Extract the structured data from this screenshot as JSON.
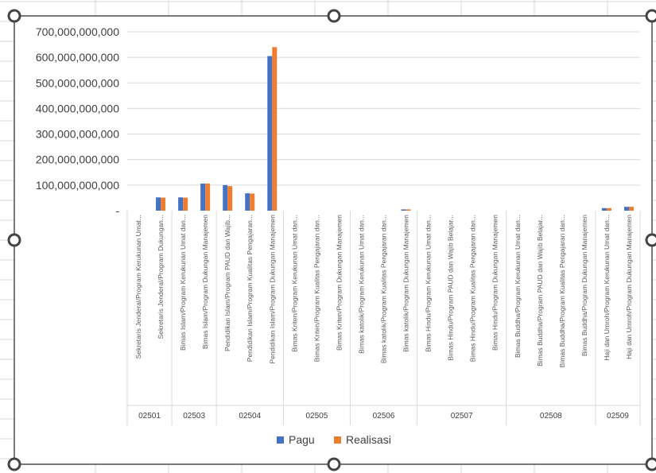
{
  "colors": {
    "pagu": "#4472C4",
    "realisasi": "#ED7D31",
    "grid": "#D9D9D9",
    "text": "#404040"
  },
  "chart_data": {
    "type": "bar",
    "title": "",
    "xlabel": "",
    "ylabel": "",
    "ylim": [
      0,
      700000000000
    ],
    "yticks": [
      "-",
      "100,000,000,000",
      "200,000,000,000",
      "300,000,000,000",
      "400,000,000,000",
      "500,000,000,000",
      "600,000,000,000",
      "700,000,000,000"
    ],
    "grid": true,
    "legend": "bottom",
    "categories": [
      "Sekretaris Jenderal/Program Kerukunan Umat...",
      "Sekretaris Jenderal/Program Dukungan...",
      "Bimas Islam/Program Kerukunan Umat dan...",
      "Bimas Islam/Program Dukungan Manajemen",
      "Pendidikan Islam/Program PAUD dan Wajib...",
      "Pendidikan Islam/Program Kualitas Pengajaran...",
      "Pendidikan Islam/Program Dukungan Manajemen",
      "Bimas Kriten/Program Kerukunan Umat dan...",
      "Bimas Kriten/Program Kualitas Pengajaran dan...",
      "Bimas Kriten/Program Dukungan Manajemen",
      "Bimas katolik/Program Kerukunan Umat dan...",
      "Bimas katolik/Program Kualitas Pengajaran dan...",
      "Bimas katolik/Program Dukungan Manajemen",
      "Bimas Hindu/Program Kerukunan Umat dan...",
      "Bimas Hindu/Program PAUD dan Wajib Belajar...",
      "Bimas Hindu/Program Kualitas Pengajaran dan...",
      "Bimas Hindu/Program Dukungan Manajemen",
      "Bimas Buddha/Program Kerukunan Umat dan...",
      "Bimas Buddha/Program PAUD dan Wajib Belajar...",
      "Bimas Buddha/Program Kualitas Pengajaran dan...",
      "Bimas Buddha/Program Dukungan Manajemen",
      "Haji dan Umroh/Program Kerukunan Umat dan...",
      "Haji dan Umroh/Program Dukungan Manajemen"
    ],
    "groups": [
      {
        "label": "02501",
        "count": 2
      },
      {
        "label": "02503",
        "count": 2
      },
      {
        "label": "02504",
        "count": 3
      },
      {
        "label": "02505",
        "count": 3
      },
      {
        "label": "02506",
        "count": 3
      },
      {
        "label": "02507",
        "count": 4
      },
      {
        "label": "02508",
        "count": 4
      },
      {
        "label": "02509",
        "count": 2
      }
    ],
    "series": [
      {
        "name": "Pagu",
        "values": [
          0,
          52000000000,
          52000000000,
          106000000000,
          100000000000,
          68000000000,
          605000000000,
          0,
          0,
          0,
          0,
          0,
          5000000000,
          0,
          0,
          0,
          0,
          0,
          0,
          0,
          0,
          10000000000,
          15000000000
        ]
      },
      {
        "name": "Realisasi",
        "values": [
          0,
          51000000000,
          51000000000,
          106000000000,
          96000000000,
          67000000000,
          640000000000,
          0,
          0,
          0,
          0,
          0,
          5000000000,
          0,
          0,
          0,
          0,
          0,
          0,
          0,
          0,
          10000000000,
          15000000000
        ]
      }
    ]
  }
}
